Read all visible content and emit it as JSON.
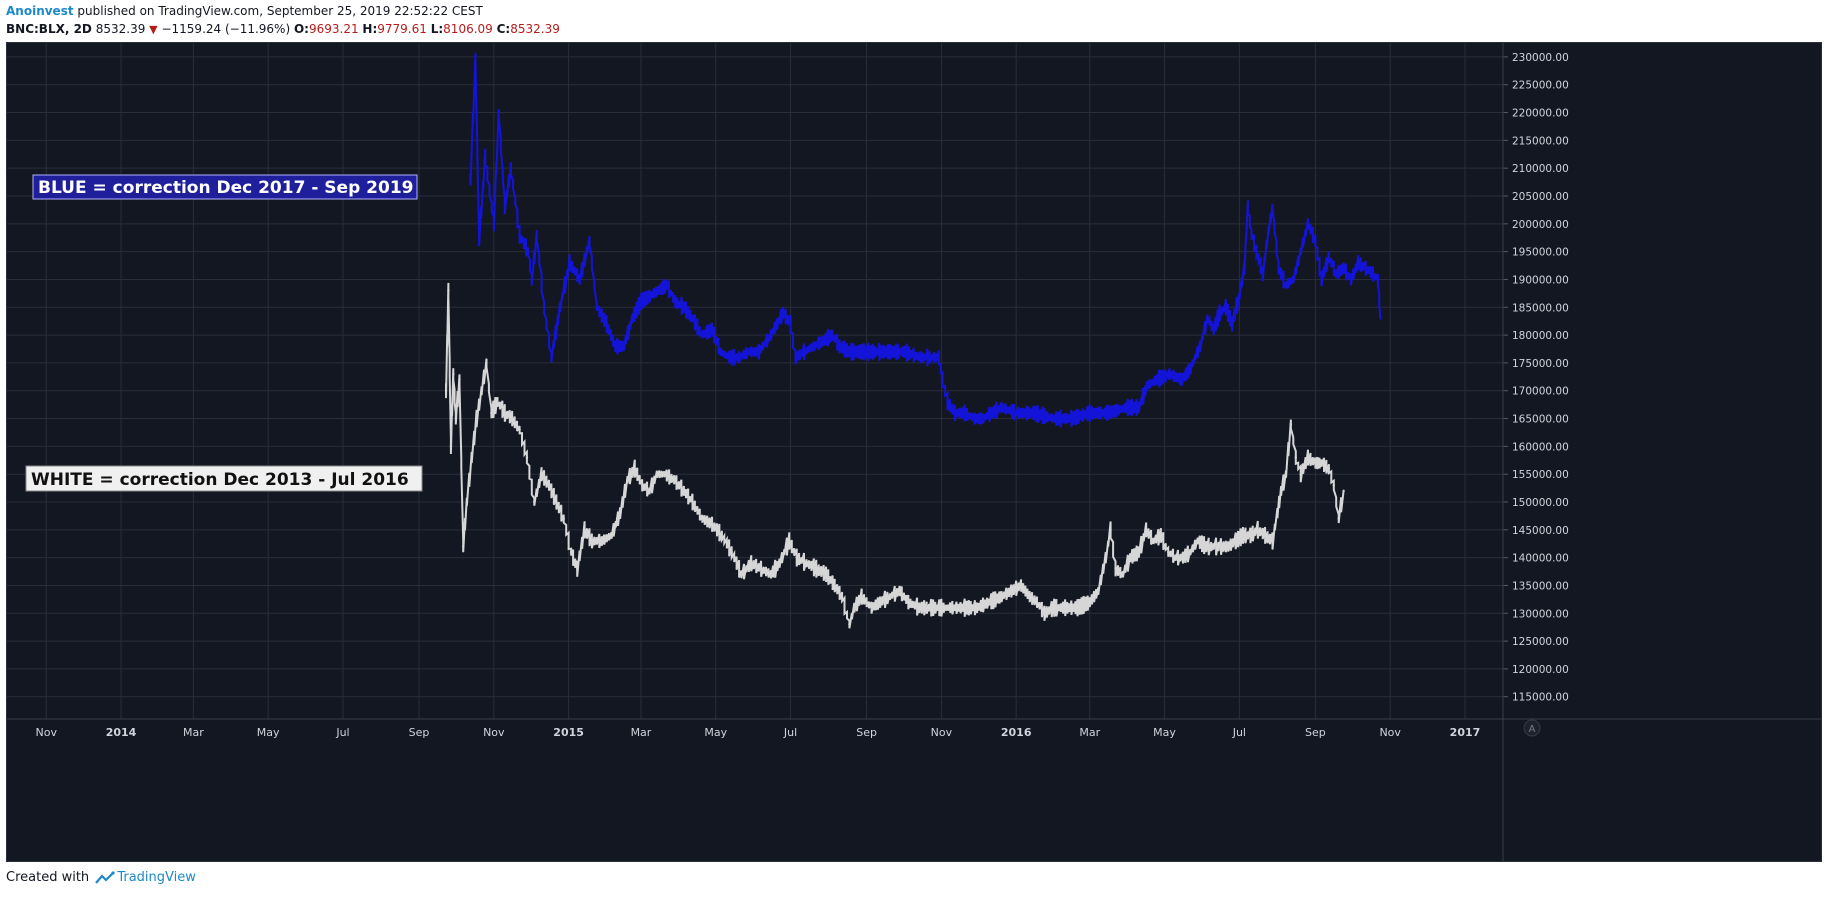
{
  "header": {
    "author": "Anoinvest",
    "published_text": "published on TradingView.com, September 25, 2019 22:52:22 CEST",
    "symbol": "BNC:BLX, 2D",
    "last_price": "8532.39",
    "change_arrow": "▼",
    "change": "−1159.24 (−11.96%)",
    "o_label": "O:",
    "o_value": "9693.21",
    "h_label": "H:",
    "h_value": "9779.61",
    "l_label": "L:",
    "l_value": "8106.09",
    "c_label": "C:",
    "c_value": "8532.39"
  },
  "footer": {
    "created_with": "Created with",
    "brand": "TradingView",
    "tv_logo_icon": "tradingview-logo-icon"
  },
  "colors": {
    "background": "#131722",
    "grid": "#2a2e39",
    "axis_text": "#d1d4dc",
    "blue_series": "#1414d9",
    "white_series": "#d6d6d6",
    "red_text": "#b71c1c",
    "brand": "#1e88c9"
  },
  "chart_data": {
    "type": "line",
    "title": "",
    "xlabel": "",
    "ylabel": "",
    "x_range": [
      "2013-09-30",
      "2017-02-01"
    ],
    "ylim": [
      111000,
      232500
    ],
    "y_ticks": [
      "230000.00",
      "225000.00",
      "220000.00",
      "215000.00",
      "210000.00",
      "205000.00",
      "200000.00",
      "195000.00",
      "190000.00",
      "185000.00",
      "180000.00",
      "175000.00",
      "170000.00",
      "165000.00",
      "160000.00",
      "155000.00",
      "150000.00",
      "145000.00",
      "140000.00",
      "135000.00",
      "130000.00",
      "125000.00",
      "120000.00",
      "115000.00"
    ],
    "y_tick_values": [
      230000,
      225000,
      220000,
      215000,
      210000,
      205000,
      200000,
      195000,
      190000,
      185000,
      180000,
      175000,
      170000,
      165000,
      160000,
      155000,
      150000,
      145000,
      140000,
      135000,
      130000,
      125000,
      120000,
      115000
    ],
    "x_ticks": [
      {
        "label": "Nov",
        "date": "2013-11-01",
        "bold": false
      },
      {
        "label": "2014",
        "date": "2014-01-01",
        "bold": true
      },
      {
        "label": "Mar",
        "date": "2014-03-01",
        "bold": false
      },
      {
        "label": "May",
        "date": "2014-05-01",
        "bold": false
      },
      {
        "label": "Jul",
        "date": "2014-07-01",
        "bold": false
      },
      {
        "label": "Sep",
        "date": "2014-09-01",
        "bold": false
      },
      {
        "label": "Nov",
        "date": "2014-11-01",
        "bold": false
      },
      {
        "label": "2015",
        "date": "2015-01-01",
        "bold": true
      },
      {
        "label": "Mar",
        "date": "2015-03-01",
        "bold": false
      },
      {
        "label": "May",
        "date": "2015-05-01",
        "bold": false
      },
      {
        "label": "Jul",
        "date": "2015-07-01",
        "bold": false
      },
      {
        "label": "Sep",
        "date": "2015-09-01",
        "bold": false
      },
      {
        "label": "Nov",
        "date": "2015-11-01",
        "bold": false
      },
      {
        "label": "2016",
        "date": "2016-01-01",
        "bold": true
      },
      {
        "label": "Mar",
        "date": "2016-03-01",
        "bold": false
      },
      {
        "label": "May",
        "date": "2016-05-01",
        "bold": false
      },
      {
        "label": "Jul",
        "date": "2016-07-01",
        "bold": false
      },
      {
        "label": "Sep",
        "date": "2016-09-01",
        "bold": false
      },
      {
        "label": "Nov",
        "date": "2016-11-01",
        "bold": false
      },
      {
        "label": "2017",
        "date": "2017-01-01",
        "bold": true
      }
    ],
    "grid": true,
    "series": [
      {
        "color": "#1414d9",
        "points": [
          [
            "2014-10-13",
            208000
          ],
          [
            "2014-10-17",
            230000
          ],
          [
            "2014-10-20",
            197000
          ],
          [
            "2014-10-25",
            212000
          ],
          [
            "2014-11-01",
            200000
          ],
          [
            "2014-11-05",
            220000
          ],
          [
            "2014-11-10",
            203000
          ],
          [
            "2014-11-15",
            210000
          ],
          [
            "2014-11-22",
            198000
          ],
          [
            "2014-11-29",
            195000
          ],
          [
            "2014-12-02",
            190000
          ],
          [
            "2014-12-06",
            198000
          ],
          [
            "2014-12-12",
            185000
          ],
          [
            "2014-12-18",
            176000
          ],
          [
            "2014-12-25",
            185000
          ],
          [
            "2015-01-02",
            193000
          ],
          [
            "2015-01-10",
            190000
          ],
          [
            "2015-01-18",
            197000
          ],
          [
            "2015-01-24",
            185000
          ],
          [
            "2015-02-01",
            182000
          ],
          [
            "2015-02-08",
            178000
          ],
          [
            "2015-02-15",
            178000
          ],
          [
            "2015-02-22",
            183000
          ],
          [
            "2015-03-01",
            186000
          ],
          [
            "2015-03-08",
            187000
          ],
          [
            "2015-03-15",
            188000
          ],
          [
            "2015-03-22",
            189000
          ],
          [
            "2015-03-29",
            186000
          ],
          [
            "2015-04-05",
            185000
          ],
          [
            "2015-04-12",
            183000
          ],
          [
            "2015-04-20",
            180000
          ],
          [
            "2015-04-28",
            181000
          ],
          [
            "2015-05-05",
            177000
          ],
          [
            "2015-05-12",
            176000
          ],
          [
            "2015-05-20",
            176000
          ],
          [
            "2015-05-28",
            177000
          ],
          [
            "2015-06-05",
            177000
          ],
          [
            "2015-06-15",
            180000
          ],
          [
            "2015-06-25",
            184000
          ],
          [
            "2015-07-01",
            182000
          ],
          [
            "2015-07-05",
            176000
          ],
          [
            "2015-07-12",
            177000
          ],
          [
            "2015-07-20",
            178000
          ],
          [
            "2015-07-28",
            179000
          ],
          [
            "2015-08-04",
            180000
          ],
          [
            "2015-08-10",
            178000
          ],
          [
            "2015-08-18",
            177000
          ],
          [
            "2015-08-28",
            177000
          ],
          [
            "2015-09-08",
            177000
          ],
          [
            "2015-09-20",
            177000
          ],
          [
            "2015-10-02",
            177000
          ],
          [
            "2015-10-15",
            176000
          ],
          [
            "2015-10-30",
            176000
          ],
          [
            "2015-11-02",
            172000
          ],
          [
            "2015-11-06",
            168000
          ],
          [
            "2015-11-12",
            166000
          ],
          [
            "2015-11-20",
            166000
          ],
          [
            "2015-11-28",
            165000
          ],
          [
            "2015-12-05",
            165000
          ],
          [
            "2015-12-12",
            166000
          ],
          [
            "2015-12-20",
            167000
          ],
          [
            "2016-01-01",
            166000
          ],
          [
            "2016-01-15",
            166000
          ],
          [
            "2016-02-01",
            165000
          ],
          [
            "2016-02-15",
            165000
          ],
          [
            "2016-03-01",
            166000
          ],
          [
            "2016-03-15",
            166000
          ],
          [
            "2016-04-01",
            167000
          ],
          [
            "2016-04-10",
            167000
          ],
          [
            "2016-04-17",
            171000
          ],
          [
            "2016-04-25",
            172000
          ],
          [
            "2016-05-05",
            173000
          ],
          [
            "2016-05-15",
            172000
          ],
          [
            "2016-05-22",
            174000
          ],
          [
            "2016-05-30",
            178000
          ],
          [
            "2016-06-05",
            183000
          ],
          [
            "2016-06-10",
            181000
          ],
          [
            "2016-06-15",
            184000
          ],
          [
            "2016-06-20",
            185000
          ],
          [
            "2016-06-25",
            182000
          ],
          [
            "2016-07-01",
            187000
          ],
          [
            "2016-07-05",
            192000
          ],
          [
            "2016-07-08",
            203000
          ],
          [
            "2016-07-11",
            198000
          ],
          [
            "2016-07-15",
            195000
          ],
          [
            "2016-07-20",
            191000
          ],
          [
            "2016-07-25",
            199000
          ],
          [
            "2016-07-28",
            203000
          ],
          [
            "2016-08-02",
            192000
          ],
          [
            "2016-08-08",
            189000
          ],
          [
            "2016-08-14",
            190000
          ],
          [
            "2016-08-20",
            195000
          ],
          [
            "2016-08-26",
            200000
          ],
          [
            "2016-09-01",
            197000
          ],
          [
            "2016-09-06",
            190000
          ],
          [
            "2016-09-12",
            194000
          ],
          [
            "2016-09-18",
            191000
          ],
          [
            "2016-09-24",
            192000
          ],
          [
            "2016-09-30",
            190000
          ],
          [
            "2016-10-06",
            193000
          ],
          [
            "2016-10-12",
            192000
          ],
          [
            "2016-10-18",
            191000
          ],
          [
            "2016-10-22",
            190000
          ],
          [
            "2016-10-24",
            183000
          ]
        ]
      },
      {
        "color": "#d6d6d6",
        "points": [
          [
            "2014-09-23",
            170000
          ],
          [
            "2014-09-25",
            188000
          ],
          [
            "2014-09-27",
            160000
          ],
          [
            "2014-09-29",
            173000
          ],
          [
            "2014-10-01",
            165000
          ],
          [
            "2014-10-04",
            172000
          ],
          [
            "2014-10-07",
            142000
          ],
          [
            "2014-10-10",
            150000
          ],
          [
            "2014-10-14",
            158000
          ],
          [
            "2014-10-18",
            165000
          ],
          [
            "2014-10-22",
            170000
          ],
          [
            "2014-10-26",
            175000
          ],
          [
            "2014-10-30",
            166000
          ],
          [
            "2014-11-04",
            168000
          ],
          [
            "2014-11-10",
            166000
          ],
          [
            "2014-11-16",
            165000
          ],
          [
            "2014-11-22",
            163000
          ],
          [
            "2014-11-28",
            158000
          ],
          [
            "2014-12-04",
            150000
          ],
          [
            "2014-12-10",
            155000
          ],
          [
            "2014-12-16",
            153000
          ],
          [
            "2014-12-22",
            150000
          ],
          [
            "2014-12-28",
            147000
          ],
          [
            "2015-01-03",
            141000
          ],
          [
            "2015-01-08",
            138000
          ],
          [
            "2015-01-14",
            145000
          ],
          [
            "2015-01-20",
            143000
          ],
          [
            "2015-01-28",
            143000
          ],
          [
            "2015-02-05",
            144000
          ],
          [
            "2015-02-12",
            148000
          ],
          [
            "2015-02-18",
            154000
          ],
          [
            "2015-02-24",
            156000
          ],
          [
            "2015-03-02",
            153000
          ],
          [
            "2015-03-08",
            152000
          ],
          [
            "2015-03-14",
            155000
          ],
          [
            "2015-03-20",
            155000
          ],
          [
            "2015-03-28",
            154000
          ],
          [
            "2015-04-05",
            152000
          ],
          [
            "2015-04-12",
            150000
          ],
          [
            "2015-04-20",
            147000
          ],
          [
            "2015-04-28",
            146000
          ],
          [
            "2015-05-06",
            144000
          ],
          [
            "2015-05-14",
            141000
          ],
          [
            "2015-05-22",
            137000
          ],
          [
            "2015-05-30",
            139000
          ],
          [
            "2015-06-07",
            138000
          ],
          [
            "2015-06-15",
            137000
          ],
          [
            "2015-06-22",
            139000
          ],
          [
            "2015-06-30",
            143000
          ],
          [
            "2015-07-06",
            140000
          ],
          [
            "2015-07-14",
            139000
          ],
          [
            "2015-07-22",
            138000
          ],
          [
            "2015-07-30",
            137000
          ],
          [
            "2015-08-06",
            135000
          ],
          [
            "2015-08-12",
            133000
          ],
          [
            "2015-08-18",
            128000
          ],
          [
            "2015-08-22",
            131000
          ],
          [
            "2015-08-28",
            133000
          ],
          [
            "2015-09-05",
            131000
          ],
          [
            "2015-09-12",
            132000
          ],
          [
            "2015-09-20",
            133000
          ],
          [
            "2015-09-28",
            134000
          ],
          [
            "2015-10-05",
            132000
          ],
          [
            "2015-10-14",
            131000
          ],
          [
            "2015-10-22",
            131000
          ],
          [
            "2015-11-01",
            131000
          ],
          [
            "2015-11-10",
            131000
          ],
          [
            "2015-11-20",
            131000
          ],
          [
            "2015-11-30",
            131000
          ],
          [
            "2015-12-10",
            132000
          ],
          [
            "2015-12-20",
            133000
          ],
          [
            "2015-12-28",
            134000
          ],
          [
            "2016-01-05",
            135000
          ],
          [
            "2016-01-12",
            133000
          ],
          [
            "2016-01-18",
            132000
          ],
          [
            "2016-01-24",
            130000
          ],
          [
            "2016-02-01",
            131000
          ],
          [
            "2016-02-10",
            131000
          ],
          [
            "2016-02-20",
            131000
          ],
          [
            "2016-03-01",
            132000
          ],
          [
            "2016-03-08",
            134000
          ],
          [
            "2016-03-14",
            140000
          ],
          [
            "2016-03-18",
            145000
          ],
          [
            "2016-03-22",
            138000
          ],
          [
            "2016-03-28",
            137000
          ],
          [
            "2016-04-03",
            140000
          ],
          [
            "2016-04-10",
            141000
          ],
          [
            "2016-04-16",
            145000
          ],
          [
            "2016-04-22",
            143000
          ],
          [
            "2016-04-28",
            144000
          ],
          [
            "2016-05-04",
            141000
          ],
          [
            "2016-05-10",
            140000
          ],
          [
            "2016-05-16",
            140000
          ],
          [
            "2016-05-22",
            141000
          ],
          [
            "2016-05-28",
            143000
          ],
          [
            "2016-06-04",
            142000
          ],
          [
            "2016-06-10",
            142000
          ],
          [
            "2016-06-16",
            142000
          ],
          [
            "2016-06-22",
            142000
          ],
          [
            "2016-06-28",
            143000
          ],
          [
            "2016-07-04",
            144000
          ],
          [
            "2016-07-10",
            144000
          ],
          [
            "2016-07-16",
            145000
          ],
          [
            "2016-07-22",
            144000
          ],
          [
            "2016-07-28",
            143000
          ],
          [
            "2016-08-01",
            148000
          ],
          [
            "2016-08-04",
            152000
          ],
          [
            "2016-08-08",
            155000
          ],
          [
            "2016-08-12",
            164000
          ],
          [
            "2016-08-16",
            158000
          ],
          [
            "2016-08-20",
            155000
          ],
          [
            "2016-08-26",
            158000
          ],
          [
            "2016-09-01",
            157000
          ],
          [
            "2016-09-06",
            157000
          ],
          [
            "2016-09-12",
            156000
          ],
          [
            "2016-09-16",
            153000
          ],
          [
            "2016-09-20",
            147000
          ],
          [
            "2016-09-24",
            152000
          ]
        ]
      }
    ],
    "annotations": [
      {
        "text": "BLUE = correction Dec 2017 - Sep 2019",
        "bg": "#1f1f9c",
        "fg": "#ffffff",
        "border": "#b0b0ff"
      },
      {
        "text": "WHITE = correction Dec 2013 - Jul 2016",
        "bg": "#f0f0f0",
        "fg": "#111111",
        "border": "#888888"
      }
    ],
    "autoscale_label": "A"
  }
}
